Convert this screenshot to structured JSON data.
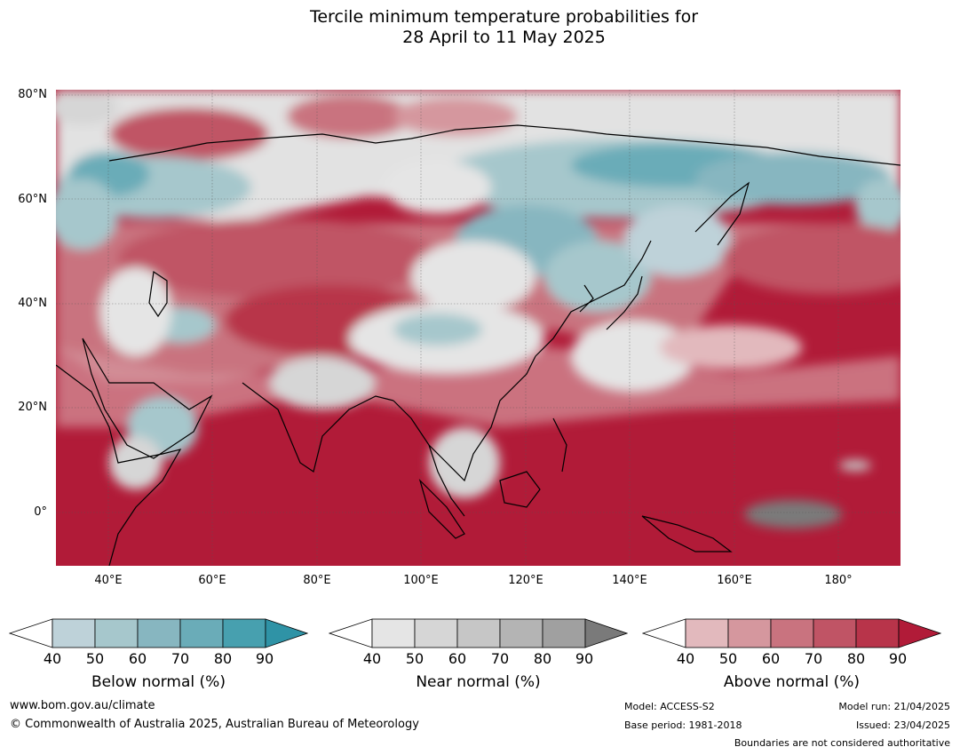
{
  "title_line1": "Tercile minimum temperature probabilities for",
  "title_line2": "28 April to 11 May 2025",
  "lat_labels": [
    "80°N",
    "60°N",
    "40°N",
    "20°N",
    "0°"
  ],
  "lon_labels": [
    "40°E",
    "60°E",
    "80°E",
    "100°E",
    "120°E",
    "140°E",
    "160°E",
    "180°"
  ],
  "colorbars": [
    {
      "title": "Below normal (%)",
      "ticks": [
        "40",
        "50",
        "60",
        "70",
        "80",
        "90"
      ],
      "colors": [
        "#ffffff",
        "#bed2d9",
        "#a6c7cc",
        "#87b6c0",
        "#6aacb8",
        "#47a0af",
        "#2f93a6"
      ]
    },
    {
      "title": "Near normal (%)",
      "ticks": [
        "40",
        "50",
        "60",
        "70",
        "80",
        "90"
      ],
      "colors": [
        "#ffffff",
        "#e5e5e5",
        "#d6d6d6",
        "#c6c6c6",
        "#b4b4b4",
        "#a0a0a0",
        "#7a7a7a"
      ]
    },
    {
      "title": "Above normal (%)",
      "ticks": [
        "40",
        "50",
        "60",
        "70",
        "80",
        "90"
      ],
      "colors": [
        "#ffffff",
        "#e2b9bd",
        "#d5979e",
        "#c9737f",
        "#c05465",
        "#b8344a",
        "#b11b38"
      ]
    }
  ],
  "footer": {
    "website": "www.bom.gov.au/climate",
    "copyright": "© Commonwealth of Australia 2025, Australian Bureau of Meteorology",
    "model": "Model: ACCESS-S2",
    "base_period": "Base period: 1981-2018",
    "model_run": "Model run: 21/04/2025",
    "issued": "Issued: 23/04/2025",
    "disclaimer": "Boundaries are not considered authoritative"
  }
}
